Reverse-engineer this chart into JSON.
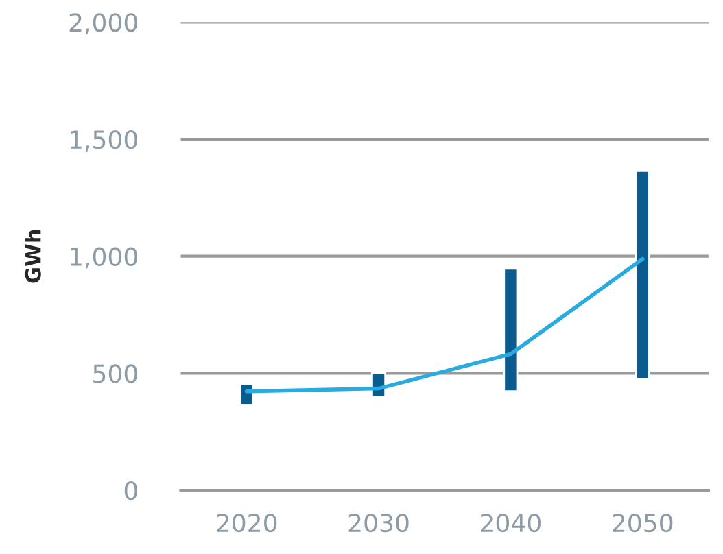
{
  "chart_data": {
    "type": "bar",
    "ylabel": "GWh",
    "categories": [
      "2020",
      "2030",
      "2040",
      "2050"
    ],
    "series": [
      {
        "color": "#0b5b8e",
        "base": [
          365,
          400,
          423,
          476
        ],
        "values": [
          88,
          100,
          524,
          888
        ]
      },
      {
        "type": "line",
        "color": "#29abe2",
        "values": [
          423,
          435,
          582,
          988
        ]
      }
    ],
    "ylim": [
      0,
      2000
    ],
    "yticks": [
      0,
      500,
      {
        "value": 1000,
        "label": "1,000"
      },
      {
        "value": 1500,
        "label": "1,500"
      },
      {
        "value": 2000,
        "label": "2,000"
      }
    ],
    "grid": "y",
    "line_style": "solid"
  }
}
